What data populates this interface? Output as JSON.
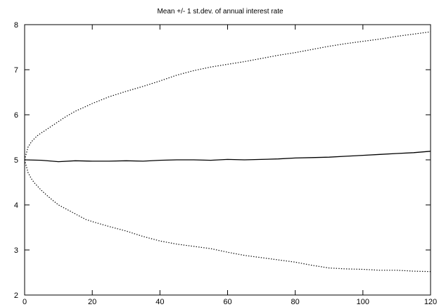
{
  "chart_data": {
    "type": "line",
    "title": "Mean +/- 1 st.dev. of annual interest rate",
    "xlabel": "",
    "ylabel": "",
    "xlim": [
      0,
      120
    ],
    "ylim": [
      2,
      8
    ],
    "x_ticks": [
      "0",
      "20",
      "40",
      "60",
      "80",
      "100",
      "120"
    ],
    "y_ticks": [
      "2",
      "3",
      "4",
      "5",
      "6",
      "7",
      "8"
    ],
    "grid": false,
    "legend": "none",
    "series": [
      {
        "style": "dotted",
        "x": [
          0,
          1,
          2,
          3,
          4,
          5,
          6,
          8,
          10,
          12,
          15,
          18,
          20,
          25,
          30,
          35,
          40,
          45,
          50,
          55,
          60,
          65,
          70,
          75,
          80,
          85,
          90,
          95,
          100,
          105,
          110,
          115,
          120
        ],
        "values": [
          5.0,
          5.28,
          5.4,
          5.48,
          5.55,
          5.6,
          5.65,
          5.75,
          5.85,
          5.95,
          6.08,
          6.18,
          6.25,
          6.4,
          6.52,
          6.63,
          6.75,
          6.88,
          6.98,
          7.06,
          7.12,
          7.18,
          7.25,
          7.32,
          7.38,
          7.45,
          7.52,
          7.58,
          7.63,
          7.68,
          7.74,
          7.79,
          7.84
        ]
      },
      {
        "style": "solid",
        "x": [
          0,
          5,
          10,
          15,
          20,
          25,
          30,
          35,
          40,
          45,
          50,
          55,
          60,
          65,
          70,
          75,
          80,
          85,
          90,
          95,
          100,
          105,
          110,
          115,
          120
        ],
        "values": [
          5.0,
          4.99,
          4.96,
          4.98,
          4.97,
          4.97,
          4.98,
          4.97,
          4.99,
          5.0,
          5.0,
          4.99,
          5.01,
          5.0,
          5.01,
          5.02,
          5.04,
          5.05,
          5.06,
          5.08,
          5.1,
          5.12,
          5.14,
          5.16,
          5.19
        ]
      },
      {
        "style": "dotted",
        "x": [
          0,
          1,
          2,
          3,
          4,
          5,
          6,
          8,
          10,
          12,
          15,
          18,
          20,
          25,
          30,
          35,
          40,
          45,
          50,
          55,
          60,
          65,
          70,
          75,
          80,
          85,
          90,
          95,
          100,
          105,
          110,
          115,
          120
        ],
        "values": [
          5.0,
          4.72,
          4.58,
          4.48,
          4.4,
          4.32,
          4.25,
          4.12,
          4.0,
          3.92,
          3.8,
          3.68,
          3.63,
          3.52,
          3.42,
          3.3,
          3.2,
          3.13,
          3.08,
          3.03,
          2.95,
          2.88,
          2.83,
          2.78,
          2.73,
          2.66,
          2.6,
          2.58,
          2.57,
          2.55,
          2.55,
          2.53,
          2.52
        ]
      }
    ]
  }
}
